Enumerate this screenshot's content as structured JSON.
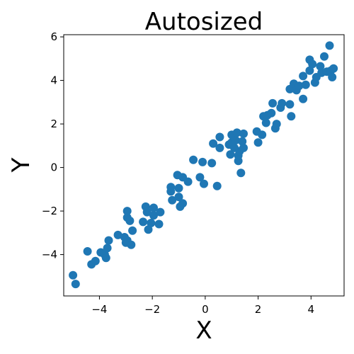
{
  "chart_data": {
    "type": "scatter",
    "title": "Autosized",
    "xlabel": "X",
    "ylabel": "Y",
    "xlim": [
      -5.35,
      5.25
    ],
    "ylim": [
      -5.9,
      6.1
    ],
    "xticks": [
      -4,
      -2,
      0,
      2,
      4
    ],
    "xtick_labels": [
      "−4",
      "−2",
      "0",
      "2",
      "4"
    ],
    "yticks": [
      -4,
      -2,
      0,
      2,
      4,
      6
    ],
    "ytick_labels": [
      "−4",
      "−2",
      "0",
      "2",
      "4",
      "6"
    ],
    "grid": false,
    "marker_color": "#1f77b4",
    "points": [
      [
        -5.0,
        -4.95
      ],
      [
        -4.9,
        -5.35
      ],
      [
        -4.45,
        -3.85
      ],
      [
        -4.3,
        -4.45
      ],
      [
        -4.15,
        -4.3
      ],
      [
        -3.95,
        -3.9
      ],
      [
        -3.8,
        -4.0
      ],
      [
        -3.75,
        -4.15
      ],
      [
        -3.7,
        -3.7
      ],
      [
        -3.65,
        -3.35
      ],
      [
        -3.3,
        -3.1
      ],
      [
        -3.05,
        -3.2
      ],
      [
        -3.0,
        -3.45
      ],
      [
        -2.95,
        -3.35
      ],
      [
        -2.95,
        -2.3
      ],
      [
        -2.95,
        -2.0
      ],
      [
        -2.85,
        -2.45
      ],
      [
        -2.8,
        -3.55
      ],
      [
        -2.75,
        -2.9
      ],
      [
        -2.35,
        -2.5
      ],
      [
        -2.25,
        -1.8
      ],
      [
        -2.2,
        -2.05
      ],
      [
        -2.15,
        -2.85
      ],
      [
        -2.05,
        -2.55
      ],
      [
        -1.95,
        -2.2
      ],
      [
        -1.95,
        -1.85
      ],
      [
        -1.75,
        -2.6
      ],
      [
        -1.7,
        -2.05
      ],
      [
        -1.3,
        -1.1
      ],
      [
        -1.3,
        -0.9
      ],
      [
        -1.25,
        -1.5
      ],
      [
        -1.05,
        -0.35
      ],
      [
        -1.0,
        -1.35
      ],
      [
        -1.0,
        -0.95
      ],
      [
        -0.95,
        -1.8
      ],
      [
        -0.85,
        -1.65
      ],
      [
        -0.85,
        -0.45
      ],
      [
        -0.65,
        -0.65
      ],
      [
        -0.45,
        0.35
      ],
      [
        -0.2,
        -0.45
      ],
      [
        -0.1,
        0.25
      ],
      [
        -0.05,
        -0.75
      ],
      [
        0.25,
        0.2
      ],
      [
        0.3,
        1.1
      ],
      [
        0.45,
        -0.85
      ],
      [
        0.55,
        0.9
      ],
      [
        0.55,
        1.4
      ],
      [
        0.9,
        1.05
      ],
      [
        0.95,
        0.6
      ],
      [
        1.0,
        1.15
      ],
      [
        1.0,
        1.5
      ],
      [
        1.1,
        0.9
      ],
      [
        1.15,
        1.25
      ],
      [
        1.2,
        1.6
      ],
      [
        1.25,
        0.3
      ],
      [
        1.25,
        0.55
      ],
      [
        1.3,
        0.75
      ],
      [
        1.35,
        -0.25
      ],
      [
        1.4,
        1.2
      ],
      [
        1.45,
        0.9
      ],
      [
        1.45,
        1.55
      ],
      [
        1.95,
        1.65
      ],
      [
        2.0,
        1.15
      ],
      [
        2.15,
        1.5
      ],
      [
        2.2,
        2.35
      ],
      [
        2.3,
        2.05
      ],
      [
        2.35,
        2.4
      ],
      [
        2.5,
        2.5
      ],
      [
        2.55,
        2.95
      ],
      [
        2.65,
        1.8
      ],
      [
        2.7,
        2.0
      ],
      [
        2.85,
        2.75
      ],
      [
        2.9,
        2.95
      ],
      [
        3.2,
        2.9
      ],
      [
        3.2,
        3.6
      ],
      [
        3.25,
        2.35
      ],
      [
        3.35,
        3.85
      ],
      [
        3.45,
        3.55
      ],
      [
        3.55,
        3.75
      ],
      [
        3.7,
        3.15
      ],
      [
        3.7,
        4.2
      ],
      [
        3.8,
        3.8
      ],
      [
        3.95,
        4.95
      ],
      [
        3.95,
        4.45
      ],
      [
        4.05,
        4.75
      ],
      [
        4.15,
        3.9
      ],
      [
        4.2,
        4.15
      ],
      [
        4.35,
        4.65
      ],
      [
        4.4,
        4.35
      ],
      [
        4.5,
        5.1
      ],
      [
        4.6,
        4.4
      ],
      [
        4.7,
        5.6
      ],
      [
        4.75,
        4.45
      ],
      [
        4.8,
        4.15
      ],
      [
        4.85,
        4.55
      ]
    ]
  }
}
